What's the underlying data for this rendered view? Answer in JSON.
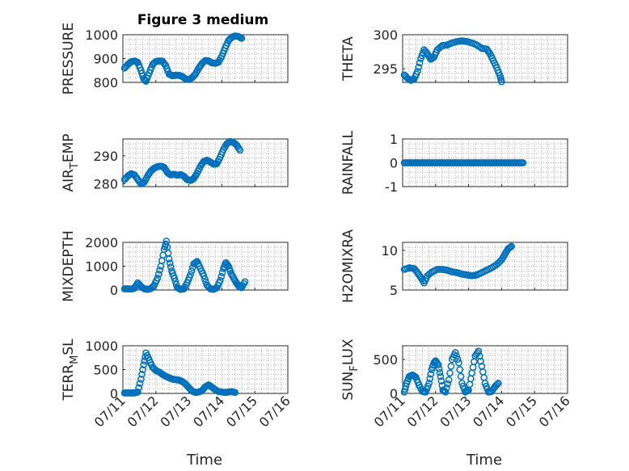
{
  "figure": {
    "title": "Figure 3 medium"
  },
  "colors": {
    "series": "#0072BD",
    "axis": "#262626",
    "grid": "#b0b0b0"
  },
  "chart_data": [
    {
      "type": "scatter",
      "ylabel": "PRESSURE",
      "xlabel": "",
      "ylim": [
        800,
        1000
      ],
      "yticks": [
        800,
        900,
        1000
      ],
      "grid": true,
      "x_range": [
        "07/11",
        "07/16"
      ],
      "segments": [
        [
          [
            0.05,
            860
          ],
          [
            0.15,
            875
          ],
          [
            0.25,
            887
          ],
          [
            0.35,
            890
          ],
          [
            0.45,
            884
          ],
          [
            0.55,
            850
          ],
          [
            0.63,
            815
          ],
          [
            0.7,
            805
          ],
          [
            0.8,
            840
          ],
          [
            0.9,
            875
          ],
          [
            1.0,
            888
          ],
          [
            1.1,
            890
          ],
          [
            1.2,
            889
          ],
          [
            1.3,
            870
          ],
          [
            1.4,
            835
          ],
          [
            1.5,
            828
          ],
          [
            1.6,
            830
          ],
          [
            1.7,
            830
          ],
          [
            1.8,
            825
          ],
          [
            1.9,
            815
          ],
          [
            2.0,
            812
          ],
          [
            2.1,
            820
          ],
          [
            2.2,
            835
          ],
          [
            2.3,
            860
          ],
          [
            2.4,
            880
          ],
          [
            2.5,
            892
          ],
          [
            2.6,
            890
          ],
          [
            2.7,
            882
          ],
          [
            2.8,
            880
          ],
          [
            2.9,
            885
          ],
          [
            3.0,
            910
          ],
          [
            3.1,
            945
          ],
          [
            3.2,
            975
          ],
          [
            3.3,
            990
          ],
          [
            3.4,
            995
          ],
          [
            3.5,
            993
          ],
          [
            3.6,
            985
          ]
        ]
      ],
      "seg_x_start": 0.05,
      "seg_x_end": 4.05
    },
    {
      "type": "scatter",
      "ylabel": "THETA",
      "xlabel": "",
      "ylim": [
        293,
        300
      ],
      "yticks": [
        295,
        300
      ],
      "grid": true,
      "x_range": [
        "07/11",
        "07/16"
      ],
      "segments": [
        [
          [
            0.05,
            294.1
          ],
          [
            0.15,
            293.6
          ],
          [
            0.25,
            293.3
          ],
          [
            0.35,
            293.5
          ],
          [
            0.45,
            294.6
          ],
          [
            0.55,
            296.5
          ],
          [
            0.65,
            297.8
          ],
          [
            0.75,
            297.2
          ],
          [
            0.85,
            296.4
          ],
          [
            0.95,
            296.7
          ],
          [
            1.05,
            297.8
          ],
          [
            1.2,
            298.4
          ],
          [
            1.35,
            298.5
          ],
          [
            1.5,
            298.8
          ],
          [
            1.65,
            299.0
          ],
          [
            1.8,
            299.1
          ],
          [
            1.95,
            299.0
          ],
          [
            2.1,
            298.8
          ],
          [
            2.25,
            298.5
          ],
          [
            2.4,
            298.0
          ],
          [
            2.55,
            297.9
          ],
          [
            2.65,
            297.2
          ],
          [
            2.75,
            296.2
          ],
          [
            2.85,
            295.2
          ],
          [
            2.95,
            294.0
          ],
          [
            3.0,
            293.1
          ]
        ]
      ],
      "seg_x_start": 0.05,
      "seg_x_end": 4.05
    },
    {
      "type": "scatter",
      "ylabel": "AIR_TEMP",
      "xlabel": "",
      "ylim": [
        279,
        296
      ],
      "yticks": [
        280,
        290
      ],
      "grid": true,
      "x_range": [
        "07/11",
        "07/16"
      ],
      "segments": [
        [
          [
            0.05,
            281.5
          ],
          [
            0.15,
            282.8
          ],
          [
            0.25,
            283.6
          ],
          [
            0.35,
            283.2
          ],
          [
            0.45,
            281.6
          ],
          [
            0.55,
            280.0
          ],
          [
            0.65,
            280.6
          ],
          [
            0.75,
            282.8
          ],
          [
            0.85,
            284.6
          ],
          [
            0.95,
            285.6
          ],
          [
            1.05,
            286.1
          ],
          [
            1.15,
            286.3
          ],
          [
            1.25,
            285.9
          ],
          [
            1.35,
            284.0
          ],
          [
            1.45,
            283.2
          ],
          [
            1.55,
            283.4
          ],
          [
            1.65,
            283.1
          ],
          [
            1.75,
            283.3
          ],
          [
            1.85,
            282.7
          ],
          [
            1.95,
            281.5
          ],
          [
            2.05,
            281.2
          ],
          [
            2.15,
            281.9
          ],
          [
            2.25,
            283.8
          ],
          [
            2.35,
            286.2
          ],
          [
            2.45,
            288.0
          ],
          [
            2.55,
            288.4
          ],
          [
            2.65,
            287.8
          ],
          [
            2.75,
            287.0
          ],
          [
            2.85,
            287.2
          ],
          [
            2.95,
            289.5
          ],
          [
            3.05,
            292.3
          ],
          [
            3.15,
            294.3
          ],
          [
            3.25,
            295.1
          ],
          [
            3.35,
            294.8
          ],
          [
            3.45,
            293.8
          ],
          [
            3.55,
            292.0
          ]
        ]
      ],
      "seg_x_start": 0.05,
      "seg_x_end": 4.05
    },
    {
      "type": "scatter",
      "ylabel": "RAINFALL",
      "xlabel": "",
      "ylim": [
        -1,
        1
      ],
      "yticks": [
        -1,
        0,
        1
      ],
      "grid": true,
      "x_range": [
        "07/11",
        "07/16"
      ],
      "constant": {
        "value": 0,
        "x_from": 0.05,
        "x_to": 4.05,
        "count": 90
      }
    },
    {
      "type": "scatter",
      "ylabel": "MIXDEPTH",
      "xlabel": "",
      "ylim": [
        0,
        2000
      ],
      "yticks": [
        0,
        1000,
        2000
      ],
      "grid": true,
      "x_range": [
        "07/11",
        "07/16"
      ],
      "segments": [
        [
          [
            0.05,
            50
          ],
          [
            0.15,
            50
          ],
          [
            0.25,
            40
          ],
          [
            0.35,
            80
          ],
          [
            0.45,
            300
          ],
          [
            0.55,
            150
          ],
          [
            0.65,
            50
          ],
          [
            0.75,
            30
          ],
          [
            0.85,
            60
          ],
          [
            0.95,
            200
          ],
          [
            1.05,
            500
          ],
          [
            1.15,
            1000
          ],
          [
            1.25,
            1700
          ],
          [
            1.32,
            2050
          ],
          [
            1.4,
            1300
          ],
          [
            1.48,
            800
          ],
          [
            1.56,
            500
          ],
          [
            1.65,
            100
          ],
          [
            1.75,
            30
          ],
          [
            1.85,
            50
          ],
          [
            1.95,
            300
          ],
          [
            2.05,
            650
          ],
          [
            2.15,
            1100
          ],
          [
            2.25,
            1200
          ],
          [
            2.35,
            900
          ],
          [
            2.45,
            600
          ],
          [
            2.55,
            200
          ],
          [
            2.65,
            50
          ],
          [
            2.75,
            30
          ],
          [
            2.85,
            100
          ],
          [
            2.95,
            400
          ],
          [
            3.05,
            900
          ],
          [
            3.12,
            1150
          ],
          [
            3.2,
            1000
          ],
          [
            3.28,
            700
          ],
          [
            3.36,
            500
          ],
          [
            3.44,
            300
          ],
          [
            3.52,
            150
          ],
          [
            3.6,
            100
          ],
          [
            3.7,
            350
          ]
        ]
      ],
      "seg_x_start": 0.05,
      "seg_x_end": 4.05
    },
    {
      "type": "scatter",
      "ylabel": "H2OMIXRA",
      "xlabel": "",
      "ylim": [
        5,
        11
      ],
      "yticks": [
        5,
        10
      ],
      "grid": true,
      "x_range": [
        "07/11",
        "07/16"
      ],
      "segments": [
        [
          [
            0.05,
            7.6
          ],
          [
            0.2,
            7.8
          ],
          [
            0.35,
            7.7
          ],
          [
            0.45,
            7.2
          ],
          [
            0.55,
            6.6
          ],
          [
            0.65,
            5.9
          ],
          [
            0.75,
            6.8
          ],
          [
            0.9,
            7.3
          ],
          [
            1.05,
            7.6
          ],
          [
            1.2,
            7.6
          ],
          [
            1.35,
            7.5
          ],
          [
            1.5,
            7.3
          ],
          [
            1.65,
            7.2
          ],
          [
            1.8,
            7.0
          ],
          [
            1.95,
            6.9
          ],
          [
            2.1,
            6.8
          ],
          [
            2.25,
            6.9
          ],
          [
            2.4,
            7.2
          ],
          [
            2.55,
            7.5
          ],
          [
            2.7,
            7.8
          ],
          [
            2.85,
            8.2
          ],
          [
            3.0,
            8.8
          ],
          [
            3.1,
            9.5
          ],
          [
            3.2,
            10.2
          ],
          [
            3.3,
            10.5
          ]
        ]
      ],
      "seg_x_start": 0.05,
      "seg_x_end": 4.05
    },
    {
      "type": "scatter",
      "ylabel": "TERR_MSL",
      "xlabel": "Time",
      "ylim": [
        0,
        1000
      ],
      "yticks": [
        0,
        500,
        1000
      ],
      "grid": true,
      "x_range": [
        "07/11",
        "07/16"
      ],
      "segments": [
        [
          [
            0.05,
            10
          ],
          [
            0.15,
            10
          ],
          [
            0.25,
            10
          ],
          [
            0.35,
            10
          ],
          [
            0.45,
            30
          ],
          [
            0.55,
            300
          ],
          [
            0.63,
            600
          ],
          [
            0.7,
            850
          ],
          [
            0.8,
            700
          ],
          [
            0.9,
            550
          ],
          [
            1.0,
            480
          ],
          [
            1.1,
            450
          ],
          [
            1.2,
            400
          ],
          [
            1.3,
            360
          ],
          [
            1.4,
            330
          ],
          [
            1.5,
            300
          ],
          [
            1.6,
            290
          ],
          [
            1.7,
            280
          ],
          [
            1.8,
            250
          ],
          [
            1.9,
            200
          ],
          [
            2.0,
            120
          ],
          [
            2.1,
            50
          ],
          [
            2.2,
            20
          ],
          [
            2.3,
            30
          ],
          [
            2.4,
            60
          ],
          [
            2.5,
            140
          ],
          [
            2.6,
            180
          ],
          [
            2.7,
            130
          ],
          [
            2.8,
            80
          ],
          [
            2.9,
            40
          ],
          [
            3.0,
            30
          ],
          [
            3.1,
            20
          ],
          [
            3.2,
            30
          ],
          [
            3.3,
            40
          ],
          [
            3.4,
            20
          ]
        ]
      ],
      "seg_x_start": 0.05,
      "seg_x_end": 4.05
    },
    {
      "type": "scatter",
      "ylabel": "SUN_FLUX",
      "xlabel": "Time",
      "ylim": [
        0,
        700
      ],
      "yticks": [
        0,
        500
      ],
      "grid": true,
      "x_range": [
        "07/11",
        "07/16"
      ],
      "segments": [
        [
          [
            0.05,
            20
          ],
          [
            0.12,
            150
          ],
          [
            0.2,
            250
          ],
          [
            0.3,
            270
          ],
          [
            0.4,
            240
          ],
          [
            0.5,
            120
          ],
          [
            0.6,
            30
          ],
          [
            0.7,
            20
          ],
          [
            0.8,
            150
          ],
          [
            0.88,
            350
          ],
          [
            0.95,
            450
          ],
          [
            1.0,
            480
          ],
          [
            1.08,
            420
          ],
          [
            1.15,
            250
          ],
          [
            1.22,
            50
          ],
          [
            1.3,
            20
          ],
          [
            1.4,
            200
          ],
          [
            1.5,
            500
          ],
          [
            1.6,
            600
          ],
          [
            1.7,
            450
          ],
          [
            1.8,
            150
          ],
          [
            1.9,
            20
          ],
          [
            2.0,
            50
          ],
          [
            2.1,
            300
          ],
          [
            2.2,
            550
          ],
          [
            2.3,
            620
          ],
          [
            2.4,
            400
          ],
          [
            2.5,
            150
          ],
          [
            2.6,
            20
          ],
          [
            2.7,
            30
          ],
          [
            2.8,
            100
          ],
          [
            2.9,
            150
          ]
        ]
      ],
      "seg_x_start": 0.05,
      "seg_x_end": 4.05
    }
  ],
  "xticks": [
    "07/11",
    "07/12",
    "07/13",
    "07/14",
    "07/15",
    "07/16"
  ],
  "xlabel": "Time",
  "ylabels_display": {
    "AIR_TEMP": {
      "base": "AIR",
      "sub": "T",
      "rest": "EMP"
    },
    "TERR_MSL": {
      "base": "TERR",
      "sub": "M",
      "rest": "SL"
    },
    "SUN_FLUX": {
      "base": "SUN",
      "sub": "F",
      "rest": "LUX"
    }
  }
}
